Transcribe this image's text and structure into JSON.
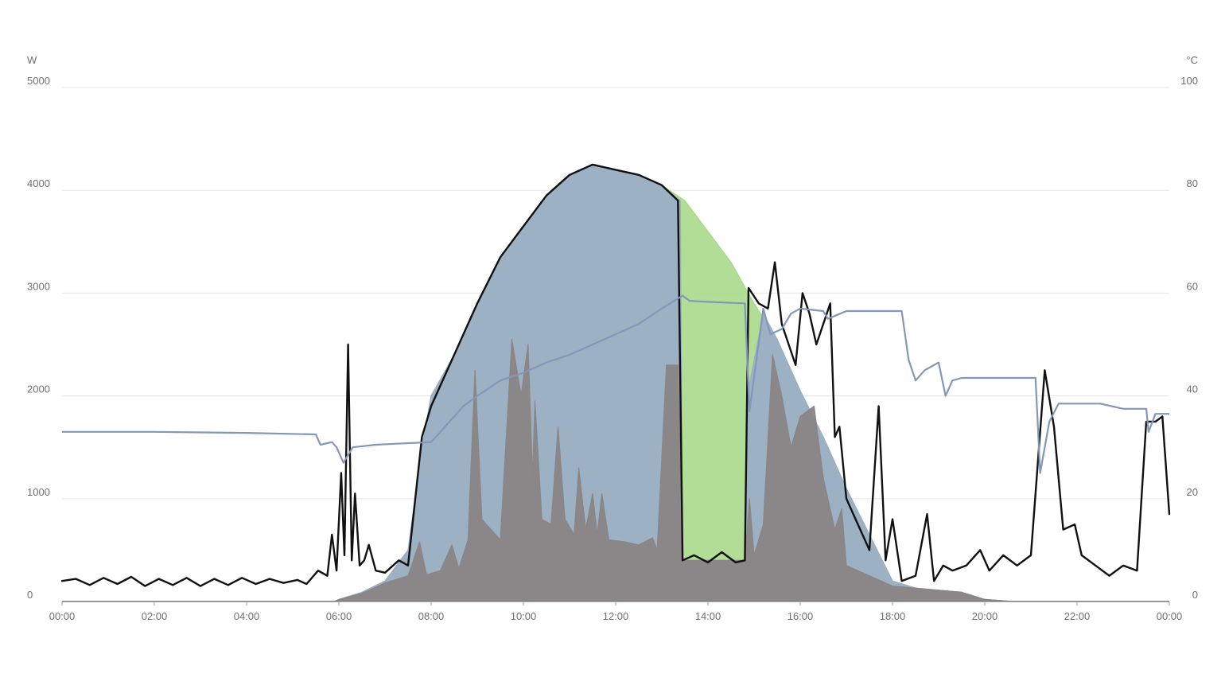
{
  "chart_data": {
    "type": "area",
    "x_unit": "time of day",
    "x_range": [
      "00:00",
      "24:00"
    ],
    "x_ticks": [
      "00:00",
      "02:00",
      "04:00",
      "06:00",
      "08:00",
      "10:00",
      "12:00",
      "14:00",
      "16:00",
      "18:00",
      "20:00",
      "22:00",
      "00:00"
    ],
    "y_left": {
      "unit": "W",
      "range": [
        0,
        5000
      ],
      "ticks": [
        "0",
        "1000",
        "2000",
        "3000",
        "4000",
        "5000"
      ]
    },
    "y_right": {
      "unit": "°C",
      "range": [
        0,
        100
      ],
      "ticks": [
        "0",
        "20",
        "40",
        "60",
        "80",
        "100"
      ]
    },
    "grid": true,
    "colors": {
      "green": "#a9d98c",
      "blue": "#9aacc8",
      "gray": "#8a8586",
      "black": "#111111",
      "temp": "#8298b8",
      "grid": "#e6e6e6",
      "baseline": "#7a7a7a"
    },
    "series": [
      {
        "style": "area-green",
        "axis": "left",
        "points": [
          [
            0,
            0
          ],
          [
            5.9,
            0
          ],
          [
            6,
            20
          ],
          [
            6.5,
            90
          ],
          [
            7,
            200
          ],
          [
            7.5,
            500
          ],
          [
            7.8,
            1500
          ],
          [
            8,
            2000
          ],
          [
            8.5,
            2400
          ],
          [
            9,
            2900
          ],
          [
            9.5,
            3350
          ],
          [
            10,
            3650
          ],
          [
            10.5,
            3950
          ],
          [
            11,
            4150
          ],
          [
            11.5,
            4250
          ],
          [
            12,
            4200
          ],
          [
            12.5,
            4150
          ],
          [
            13,
            4050
          ],
          [
            13.5,
            3900
          ],
          [
            14,
            3600
          ],
          [
            14.5,
            3300
          ],
          [
            15,
            2900
          ],
          [
            15.5,
            2550
          ],
          [
            16,
            2050
          ],
          [
            16.5,
            1600
          ],
          [
            17,
            1100
          ],
          [
            17.5,
            650
          ],
          [
            18,
            200
          ],
          [
            18.5,
            130
          ],
          [
            19,
            110
          ],
          [
            19.5,
            90
          ],
          [
            20,
            20
          ],
          [
            20.6,
            0
          ],
          [
            24,
            0
          ]
        ]
      },
      {
        "style": "area-blue",
        "axis": "left",
        "points": [
          [
            0,
            0
          ],
          [
            5.9,
            0
          ],
          [
            6,
            20
          ],
          [
            6.5,
            90
          ],
          [
            7,
            200
          ],
          [
            7.5,
            500
          ],
          [
            7.8,
            1500
          ],
          [
            8,
            2000
          ],
          [
            8.5,
            2400
          ],
          [
            9,
            2900
          ],
          [
            9.5,
            3350
          ],
          [
            10,
            3650
          ],
          [
            10.5,
            3950
          ],
          [
            11,
            4150
          ],
          [
            11.5,
            4250
          ],
          [
            12,
            4200
          ],
          [
            12.5,
            4150
          ],
          [
            13,
            4050
          ],
          [
            13.4,
            3900
          ],
          [
            13.45,
            400
          ],
          [
            14.8,
            400
          ],
          [
            14.85,
            2000
          ],
          [
            15.2,
            2800
          ],
          [
            15.5,
            2550
          ],
          [
            16,
            2050
          ],
          [
            16.5,
            1600
          ],
          [
            17,
            1100
          ],
          [
            17.5,
            650
          ],
          [
            18,
            200
          ],
          [
            18.5,
            130
          ],
          [
            19,
            110
          ],
          [
            19.5,
            90
          ],
          [
            20,
            20
          ],
          [
            20.6,
            0
          ],
          [
            24,
            0
          ]
        ]
      },
      {
        "style": "area-gray",
        "axis": "left",
        "points": [
          [
            0,
            0
          ],
          [
            5.9,
            0
          ],
          [
            6,
            20
          ],
          [
            6.5,
            80
          ],
          [
            7,
            180
          ],
          [
            7.5,
            250
          ],
          [
            7.75,
            580
          ],
          [
            7.9,
            260
          ],
          [
            8.2,
            300
          ],
          [
            8.45,
            550
          ],
          [
            8.6,
            320
          ],
          [
            8.8,
            600
          ],
          [
            8.95,
            2250
          ],
          [
            9.1,
            800
          ],
          [
            9.5,
            600
          ],
          [
            9.75,
            2550
          ],
          [
            9.95,
            2000
          ],
          [
            10.1,
            2500
          ],
          [
            10.2,
            1200
          ],
          [
            10.25,
            1950
          ],
          [
            10.4,
            800
          ],
          [
            10.6,
            750
          ],
          [
            10.75,
            1700
          ],
          [
            10.9,
            800
          ],
          [
            11.1,
            650
          ],
          [
            11.2,
            1300
          ],
          [
            11.35,
            700
          ],
          [
            11.5,
            1050
          ],
          [
            11.6,
            650
          ],
          [
            11.7,
            1050
          ],
          [
            11.85,
            600
          ],
          [
            12.2,
            580
          ],
          [
            12.5,
            550
          ],
          [
            12.8,
            620
          ],
          [
            12.9,
            500
          ],
          [
            13.1,
            2300
          ],
          [
            13.35,
            2300
          ],
          [
            13.45,
            400
          ],
          [
            14.8,
            400
          ],
          [
            14.9,
            1000
          ],
          [
            15.0,
            450
          ],
          [
            15.2,
            750
          ],
          [
            15.4,
            2400
          ],
          [
            15.6,
            2000
          ],
          [
            15.8,
            1500
          ],
          [
            16.0,
            1800
          ],
          [
            16.3,
            1900
          ],
          [
            16.5,
            1200
          ],
          [
            16.75,
            700
          ],
          [
            16.9,
            900
          ],
          [
            17.0,
            350
          ],
          [
            17.5,
            250
          ],
          [
            18.0,
            150
          ],
          [
            18.5,
            130
          ],
          [
            19,
            110
          ],
          [
            19.5,
            90
          ],
          [
            20,
            20
          ],
          [
            20.6,
            0
          ],
          [
            24,
            0
          ]
        ]
      },
      {
        "style": "line-black",
        "axis": "left",
        "points": [
          [
            0,
            200
          ],
          [
            0.3,
            220
          ],
          [
            0.6,
            160
          ],
          [
            0.9,
            230
          ],
          [
            1.2,
            170
          ],
          [
            1.5,
            240
          ],
          [
            1.8,
            150
          ],
          [
            2.1,
            220
          ],
          [
            2.4,
            160
          ],
          [
            2.7,
            230
          ],
          [
            3.0,
            150
          ],
          [
            3.3,
            220
          ],
          [
            3.6,
            160
          ],
          [
            3.9,
            230
          ],
          [
            4.2,
            170
          ],
          [
            4.5,
            220
          ],
          [
            4.8,
            180
          ],
          [
            5.1,
            210
          ],
          [
            5.3,
            170
          ],
          [
            5.55,
            300
          ],
          [
            5.75,
            250
          ],
          [
            5.85,
            650
          ],
          [
            5.95,
            300
          ],
          [
            6.05,
            1250
          ],
          [
            6.12,
            450
          ],
          [
            6.2,
            2500
          ],
          [
            6.28,
            400
          ],
          [
            6.35,
            1050
          ],
          [
            6.45,
            350
          ],
          [
            6.55,
            400
          ],
          [
            6.65,
            550
          ],
          [
            6.8,
            300
          ],
          [
            7.0,
            280
          ],
          [
            7.3,
            400
          ],
          [
            7.5,
            350
          ],
          [
            7.8,
            1600
          ],
          [
            8,
            1900
          ],
          [
            8.5,
            2400
          ],
          [
            9,
            2900
          ],
          [
            9.5,
            3350
          ],
          [
            10,
            3650
          ],
          [
            10.5,
            3950
          ],
          [
            11,
            4150
          ],
          [
            11.5,
            4250
          ],
          [
            12,
            4200
          ],
          [
            12.5,
            4150
          ],
          [
            13,
            4050
          ],
          [
            13.35,
            3900
          ],
          [
            13.45,
            400
          ],
          [
            13.7,
            450
          ],
          [
            14.0,
            380
          ],
          [
            14.3,
            480
          ],
          [
            14.6,
            380
          ],
          [
            14.8,
            400
          ],
          [
            14.88,
            3050
          ],
          [
            15.1,
            2900
          ],
          [
            15.3,
            2850
          ],
          [
            15.45,
            3300
          ],
          [
            15.6,
            2700
          ],
          [
            15.9,
            2300
          ],
          [
            16.05,
            3000
          ],
          [
            16.2,
            2800
          ],
          [
            16.35,
            2500
          ],
          [
            16.5,
            2700
          ],
          [
            16.65,
            2900
          ],
          [
            16.75,
            1600
          ],
          [
            16.85,
            1700
          ],
          [
            17.0,
            1000
          ],
          [
            17.5,
            500
          ],
          [
            17.7,
            1900
          ],
          [
            17.85,
            400
          ],
          [
            18.0,
            800
          ],
          [
            18.2,
            200
          ],
          [
            18.5,
            250
          ],
          [
            18.75,
            850
          ],
          [
            18.9,
            200
          ],
          [
            19.1,
            350
          ],
          [
            19.3,
            300
          ],
          [
            19.6,
            350
          ],
          [
            19.9,
            500
          ],
          [
            20.1,
            300
          ],
          [
            20.4,
            450
          ],
          [
            20.7,
            350
          ],
          [
            21.0,
            450
          ],
          [
            21.3,
            2250
          ],
          [
            21.5,
            1700
          ],
          [
            21.7,
            700
          ],
          [
            21.95,
            750
          ],
          [
            22.1,
            450
          ],
          [
            22.4,
            350
          ],
          [
            22.7,
            250
          ],
          [
            23.0,
            350
          ],
          [
            23.3,
            300
          ],
          [
            23.5,
            1750
          ],
          [
            23.7,
            1750
          ],
          [
            23.85,
            1800
          ],
          [
            24,
            850
          ]
        ]
      },
      {
        "style": "line-temp",
        "axis": "right",
        "points": [
          [
            0,
            33
          ],
          [
            2,
            33
          ],
          [
            4,
            32.8
          ],
          [
            5.5,
            32.5
          ],
          [
            5.6,
            30.5
          ],
          [
            5.85,
            31
          ],
          [
            5.95,
            30
          ],
          [
            6.1,
            27
          ],
          [
            6.3,
            30
          ],
          [
            6.8,
            30.5
          ],
          [
            7.5,
            30.8
          ],
          [
            8,
            31
          ],
          [
            8.3,
            34
          ],
          [
            8.7,
            38
          ],
          [
            9,
            40
          ],
          [
            9.5,
            43
          ],
          [
            10,
            44.5
          ],
          [
            10.5,
            46.5
          ],
          [
            11,
            48
          ],
          [
            11.5,
            50
          ],
          [
            12,
            52
          ],
          [
            12.5,
            54
          ],
          [
            13,
            57
          ],
          [
            13.45,
            59.5
          ],
          [
            13.6,
            58.5
          ],
          [
            14,
            58.3
          ],
          [
            14.8,
            58
          ],
          [
            14.9,
            37
          ],
          [
            15.2,
            57
          ],
          [
            15.35,
            52
          ],
          [
            15.6,
            53
          ],
          [
            15.8,
            56
          ],
          [
            16,
            57
          ],
          [
            16.5,
            56.5
          ],
          [
            16.6,
            55
          ],
          [
            17,
            56.5
          ],
          [
            18.2,
            56.5
          ],
          [
            18.35,
            47
          ],
          [
            18.5,
            43
          ],
          [
            18.7,
            45
          ],
          [
            19.0,
            46.5
          ],
          [
            19.15,
            40
          ],
          [
            19.3,
            43
          ],
          [
            19.5,
            43.5
          ],
          [
            20.5,
            43.5
          ],
          [
            21.1,
            43.5
          ],
          [
            21.2,
            25
          ],
          [
            21.4,
            35
          ],
          [
            21.6,
            38.5
          ],
          [
            22.5,
            38.5
          ],
          [
            23.0,
            37.5
          ],
          [
            23.5,
            37.5
          ],
          [
            23.55,
            33
          ],
          [
            23.7,
            36.5
          ],
          [
            24,
            36.5
          ]
        ]
      }
    ]
  }
}
